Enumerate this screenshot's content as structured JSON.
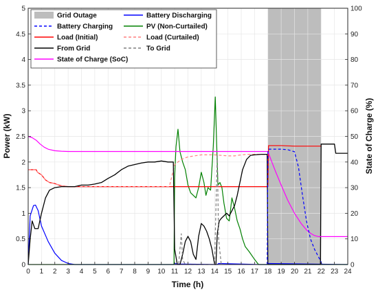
{
  "chart_data": {
    "type": "line",
    "xlabel": "Time (h)",
    "ylabel": "Power (kW)",
    "y2label": "State of Charge (%)",
    "xlim": [
      0,
      24
    ],
    "ylim": [
      0,
      5
    ],
    "y2lim": [
      0,
      100
    ],
    "x_ticks": [
      "0",
      "1",
      "2",
      "3",
      "4",
      "5",
      "6",
      "7",
      "8",
      "9",
      "10",
      "11",
      "12",
      "13",
      "14",
      "15",
      "16",
      "17",
      "18",
      "19",
      "20",
      "21",
      "22",
      "23",
      "24"
    ],
    "y_ticks": [
      "0",
      "0.5",
      "1",
      "1.5",
      "2",
      "2.5",
      "3",
      "3.5",
      "4",
      "4.5",
      "5"
    ],
    "y2_ticks": [
      "0",
      "10",
      "20",
      "30",
      "40",
      "50",
      "60",
      "70",
      "80",
      "90",
      "100"
    ],
    "grid": true,
    "legend_placement": "top",
    "colors": {
      "outage": "#bdbdbd",
      "battery_discharging": "#0000ff",
      "battery_charging": "#0000ff",
      "pv": "#008000",
      "load_initial": "#ff0000",
      "load_curtailed": "#ff7f7f",
      "from_grid": "#000000",
      "to_grid": "#7f7f7f",
      "soc": "#ff00ff"
    },
    "outage": {
      "name": "Grid Outage",
      "start": 18,
      "end": 22
    },
    "series": [
      {
        "key": "battery_discharging",
        "name": "Battery Discharging",
        "axis": "left",
        "style": "solid",
        "color": "#0000ff",
        "x": [
          0,
          0.15,
          0.4,
          0.55,
          0.75,
          1.0,
          1.5,
          2.0,
          2.5,
          3.0,
          3.5,
          4,
          10.9,
          11.0,
          11.2,
          14.2,
          14.3,
          17.4,
          17.9,
          18.0,
          24
        ],
        "y": [
          0,
          0.95,
          1.15,
          1.16,
          1.05,
          0.75,
          0.45,
          0.22,
          0.08,
          0.02,
          0.0,
          0,
          0,
          0.02,
          0.01,
          0,
          0.02,
          0,
          0,
          0.02,
          0
        ]
      },
      {
        "key": "battery_charging",
        "name": "Battery Charging",
        "axis": "left",
        "style": "dashed",
        "color": "#0000ff",
        "x": [
          17.95,
          18.0,
          18.05,
          18.5,
          19.0,
          19.5,
          20.0,
          20.3,
          20.6,
          20.9,
          21.2,
          21.5,
          21.8,
          22.0,
          22.05
        ],
        "y": [
          0,
          2.18,
          2.25,
          2.25,
          2.25,
          2.24,
          2.2,
          1.9,
          1.35,
          0.85,
          0.5,
          0.3,
          0.15,
          0.05,
          0
        ]
      },
      {
        "key": "pv",
        "name": "PV (Non-Curtailed)",
        "axis": "left",
        "style": "solid",
        "color": "#008000",
        "x": [
          0,
          10.95,
          11.0,
          11.1,
          11.25,
          11.4,
          11.6,
          11.8,
          12.0,
          12.2,
          12.4,
          12.6,
          12.8,
          13.0,
          13.2,
          13.35,
          13.5,
          13.7,
          13.9,
          14.05,
          14.15,
          14.25,
          14.4,
          14.55,
          14.7,
          14.9,
          15.1,
          15.3,
          15.5,
          15.7,
          15.9,
          16.1,
          16.3,
          16.6,
          17.0,
          17.3,
          24
        ],
        "y": [
          0,
          0,
          1.7,
          2.3,
          2.64,
          2.2,
          2.0,
          1.85,
          1.55,
          1.4,
          1.35,
          1.3,
          1.5,
          1.8,
          1.6,
          1.35,
          1.5,
          1.45,
          2.3,
          3.27,
          2.4,
          1.55,
          1.6,
          1.5,
          1.2,
          0.9,
          0.85,
          1.3,
          1.1,
          0.85,
          0.7,
          0.5,
          0.35,
          0.25,
          0.1,
          0,
          0
        ]
      },
      {
        "key": "load_initial",
        "name": "Load (Initial)",
        "axis": "left",
        "style": "solid",
        "color": "#ff0000",
        "x": [
          0,
          0.6,
          0.7,
          1.0,
          1.3,
          1.6,
          2.0,
          2.3,
          2.6,
          3.0,
          3.5,
          4.0,
          5.0,
          6.0,
          7.0,
          8.0,
          9.0,
          10.0,
          10.5,
          11.0,
          12.0,
          12.5,
          13.0,
          14.0,
          14.5,
          15.0,
          15.5,
          16.0,
          16.5,
          17.0,
          17.5,
          18.0,
          18.05,
          19.0,
          20.0,
          21.0,
          22.0
        ],
        "y": [
          1.85,
          1.85,
          1.8,
          1.75,
          1.65,
          1.6,
          1.58,
          1.55,
          1.53,
          1.52,
          1.52,
          1.52,
          1.52,
          1.52,
          1.52,
          1.52,
          1.52,
          1.52,
          1.52,
          1.52,
          1.52,
          1.52,
          1.52,
          1.52,
          1.52,
          1.52,
          1.52,
          1.52,
          1.52,
          1.52,
          1.52,
          1.52,
          2.32,
          2.32,
          2.31,
          2.31,
          2.31
        ]
      },
      {
        "key": "load_curtailed",
        "name": "Load (Curtailed)",
        "axis": "left",
        "style": "dashed",
        "color": "#ff7f7f",
        "x": [
          0,
          0.6,
          0.7,
          1.0,
          1.3,
          1.6,
          2.0,
          2.3,
          2.6,
          3.0,
          10.6,
          11.0,
          11.5,
          12.0,
          12.5,
          13.0,
          13.5,
          14.0,
          14.5,
          15.0,
          15.5,
          16.0,
          16.5,
          17.0,
          17.5,
          18.0
        ],
        "y": [
          1.85,
          1.85,
          1.8,
          1.75,
          1.65,
          1.6,
          1.58,
          1.55,
          1.53,
          1.52,
          1.52,
          1.95,
          2.05,
          2.1,
          2.12,
          2.14,
          2.14,
          2.14,
          2.13,
          2.12,
          2.12,
          2.14,
          2.15,
          2.15,
          2.15,
          2.15
        ]
      },
      {
        "key": "from_grid",
        "name": "From Grid",
        "axis": "left",
        "style": "solid",
        "color": "#000000",
        "x": [
          0,
          0.15,
          0.3,
          0.5,
          0.75,
          1.0,
          1.3,
          1.6,
          2.0,
          2.5,
          3.0,
          3.5,
          4.0,
          4.5,
          5.0,
          5.5,
          6.0,
          6.5,
          7.0,
          7.5,
          8.0,
          8.5,
          9.0,
          9.5,
          10.0,
          10.5,
          10.9,
          11.0,
          11.2,
          11.4,
          11.6,
          11.8,
          12.0,
          12.2,
          12.4,
          12.6,
          12.8,
          13.0,
          13.2,
          13.4,
          13.6,
          13.8,
          14.0,
          14.1,
          14.2,
          14.35,
          14.5,
          14.7,
          14.9,
          15.1,
          15.3,
          15.5,
          15.7,
          15.9,
          16.1,
          16.4,
          16.7,
          17.0,
          17.5,
          17.95,
          18.0,
          18.05,
          21.95,
          22.0,
          22.05,
          22.1,
          22.5,
          23.0,
          23.1,
          24.0
        ],
        "y": [
          0,
          0.5,
          0.85,
          0.7,
          0.7,
          1.0,
          1.3,
          1.45,
          1.5,
          1.52,
          1.52,
          1.52,
          1.55,
          1.55,
          1.57,
          1.6,
          1.68,
          1.75,
          1.85,
          1.92,
          1.95,
          1.98,
          2.0,
          2.0,
          2.02,
          2.0,
          2.0,
          0.3,
          0.0,
          0.0,
          0.2,
          0.45,
          0.55,
          0.45,
          0.2,
          0.1,
          0.55,
          0.8,
          0.75,
          0.65,
          0.5,
          0.3,
          0.0,
          0.0,
          0.6,
          0.85,
          0.9,
          0.95,
          1.0,
          0.95,
          1.05,
          1.15,
          1.35,
          1.6,
          1.85,
          2.05,
          2.13,
          2.14,
          2.15,
          2.15,
          0.0,
          0.0,
          0.0,
          2.35,
          2.35,
          2.35,
          2.35,
          2.35,
          2.17,
          2.17
        ]
      },
      {
        "key": "to_grid",
        "name": "To Grid",
        "axis": "left",
        "style": "dashed",
        "color": "#7f7f7f",
        "x": [
          11.0,
          11.3,
          11.5,
          11.6,
          11.8,
          14.0,
          14.1,
          14.2,
          14.3,
          14.5
        ],
        "y": [
          0,
          0,
          0.6,
          0.1,
          0,
          0,
          1.1,
          2.15,
          0.5,
          0
        ]
      },
      {
        "key": "soc",
        "name": "State of Charge (SoC)",
        "axis": "right",
        "style": "solid",
        "color": "#ff00ff",
        "x": [
          0,
          0.3,
          0.6,
          0.9,
          1.2,
          1.5,
          2.0,
          2.5,
          3.0,
          4.0,
          6.0,
          8.0,
          10.0,
          12.0,
          14.0,
          16.0,
          17.0,
          17.5,
          18.0,
          18.3,
          18.6,
          19.0,
          19.5,
          20.0,
          20.5,
          20.9,
          21.2,
          21.5,
          21.8,
          22.0,
          23.0,
          24.0
        ],
        "y": [
          50,
          49.5,
          48.5,
          47,
          45.8,
          45,
          44.4,
          44.2,
          44.1,
          44.1,
          44.1,
          44.1,
          44.1,
          44.1,
          44.1,
          44.1,
          44.1,
          44.1,
          44.1,
          40,
          36,
          31,
          25,
          20,
          16,
          13.5,
          12.2,
          11.3,
          10.9,
          10.9,
          10.9,
          10.9
        ]
      }
    ],
    "legend": [
      {
        "label": "Grid Outage",
        "kind": "patch",
        "color": "#bdbdbd",
        "dash": ""
      },
      {
        "label": "Battery Discharging",
        "kind": "line",
        "color": "#0000ff",
        "dash": ""
      },
      {
        "label": "Battery Charging",
        "kind": "line",
        "color": "#0000ff",
        "dash": "4,3"
      },
      {
        "label": "PV (Non-Curtailed)",
        "kind": "line",
        "color": "#008000",
        "dash": ""
      },
      {
        "label": "Load (Initial)",
        "kind": "line",
        "color": "#ff0000",
        "dash": ""
      },
      {
        "label": "Load (Curtailed)",
        "kind": "line",
        "color": "#ff7f7f",
        "dash": "4,3"
      },
      {
        "label": "From Grid",
        "kind": "line",
        "color": "#000000",
        "dash": ""
      },
      {
        "label": "To Grid",
        "kind": "line",
        "color": "#7f7f7f",
        "dash": "4,3"
      },
      {
        "label": "State of Charge (SoC)",
        "kind": "line",
        "color": "#ff00ff",
        "dash": ""
      }
    ]
  }
}
